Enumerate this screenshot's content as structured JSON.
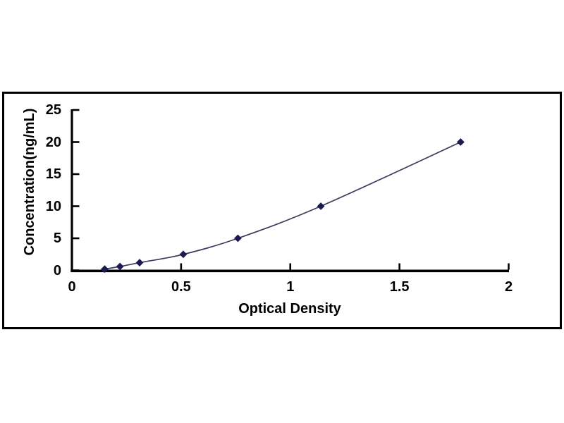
{
  "figure": {
    "background_color": "#ffffff",
    "plot_background_color": "#ffffff",
    "frame_border_color": "#000000"
  },
  "chart_data": {
    "type": "scatter",
    "title": "",
    "xlabel": "Optical Density",
    "ylabel": "Concentration(ng/mL)",
    "xlim": [
      0,
      2
    ],
    "ylim": [
      0,
      25
    ],
    "x": [
      0.15,
      0.22,
      0.31,
      0.51,
      0.76,
      1.14,
      1.78
    ],
    "y": [
      0.2,
      0.6,
      1.2,
      2.5,
      5,
      10,
      20
    ],
    "x_ticks": [
      0,
      0.5,
      1,
      1.5,
      2
    ],
    "x_tick_labels": [
      "0",
      "0.5",
      "1",
      "1.5",
      "2"
    ],
    "y_ticks": [
      0,
      5,
      10,
      15,
      20,
      25
    ],
    "y_tick_labels": [
      "0",
      "5",
      "10",
      "15",
      "20",
      "25"
    ],
    "grid": false,
    "legend": false,
    "line_style": "smooth",
    "marker": "diamond",
    "colors": {
      "marker": "#1b1b52",
      "line": "#3c3c60",
      "axis": "#000000",
      "text": "#000000"
    }
  }
}
